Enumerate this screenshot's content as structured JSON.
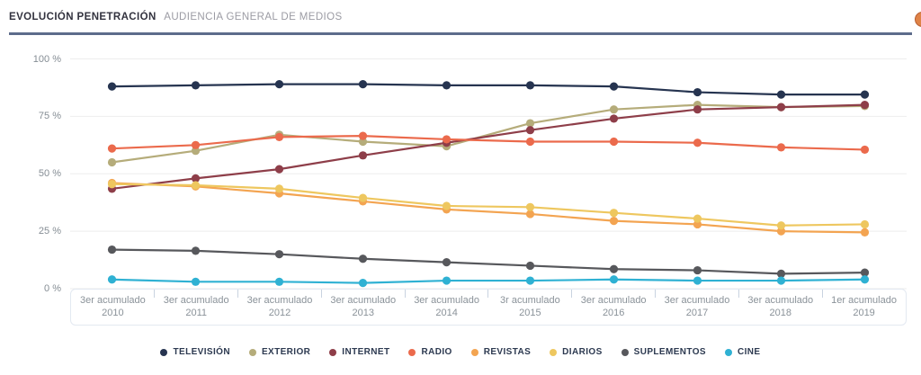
{
  "header": {
    "title_bold": "EVOLUCIÓN PENETRACIÓN",
    "subtitle": "AUDIENCIA GENERAL DE MEDIOS"
  },
  "corner_badge": {
    "color": "#df8347"
  },
  "chart_data": {
    "type": "line",
    "title": "EVOLUCIÓN PENETRACIÓN — AUDIENCIA GENERAL DE MEDIOS",
    "xlabel": "",
    "ylabel": "",
    "ylim": [
      0,
      100
    ],
    "grid": "horizontal",
    "legend_position": "bottom",
    "gridline_color": "#ededed",
    "y_ticks": [
      {
        "value": 100,
        "label": "100 %"
      },
      {
        "value": 75,
        "label": "75 %"
      },
      {
        "value": 50,
        "label": "50 %"
      },
      {
        "value": 25,
        "label": "25 %"
      },
      {
        "value": 0,
        "label": "0 %"
      }
    ],
    "categories": [
      {
        "period": "3er acumulado",
        "year": "2010"
      },
      {
        "period": "3er acumulado",
        "year": "2011"
      },
      {
        "period": "3er acumulado",
        "year": "2012"
      },
      {
        "period": "3er acumulado",
        "year": "2013"
      },
      {
        "period": "3er acumulado",
        "year": "2014"
      },
      {
        "period": "3r acumulado",
        "year": "2015"
      },
      {
        "period": "3er acumulado",
        "year": "2016"
      },
      {
        "period": "3er acumulado",
        "year": "2017"
      },
      {
        "period": "3er acumulado",
        "year": "2018"
      },
      {
        "period": "1er acumulado",
        "year": "2019"
      }
    ],
    "series": [
      {
        "name": "TELEVISIÓN",
        "color": "#263450",
        "values": [
          88,
          88.5,
          89,
          89,
          88.5,
          88.5,
          88,
          85.5,
          84.5,
          84.5
        ]
      },
      {
        "name": "EXTERIOR",
        "color": "#b5ac7a",
        "values": [
          55,
          60,
          67,
          64,
          62,
          72,
          78,
          80,
          79,
          79.5
        ]
      },
      {
        "name": "INTERNET",
        "color": "#8e3e49",
        "values": [
          43.5,
          48,
          52,
          58,
          63.5,
          69,
          74,
          78,
          79,
          80
        ]
      },
      {
        "name": "RADIO",
        "color": "#eb6a4c",
        "values": [
          61,
          62.5,
          66,
          66.5,
          65,
          64,
          64,
          63.5,
          61.5,
          60.5
        ]
      },
      {
        "name": "REVISTAS",
        "color": "#f3a451",
        "values": [
          46,
          44.5,
          41.5,
          38,
          34.5,
          32.5,
          29.5,
          28,
          25,
          24.5
        ]
      },
      {
        "name": "DIARIOS",
        "color": "#eec75f",
        "values": [
          45.5,
          45,
          43.5,
          39.5,
          36,
          35.5,
          33,
          30.5,
          27.5,
          28
        ]
      },
      {
        "name": "SUPLEMENTOS",
        "color": "#57585c",
        "values": [
          17,
          16.5,
          15,
          13,
          11.5,
          10,
          8.5,
          8,
          6.5,
          7
        ]
      },
      {
        "name": "CINE",
        "color": "#2fb1d3",
        "values": [
          4,
          3,
          3,
          2.5,
          3.5,
          3.5,
          4,
          3.5,
          3.5,
          4
        ]
      }
    ]
  }
}
